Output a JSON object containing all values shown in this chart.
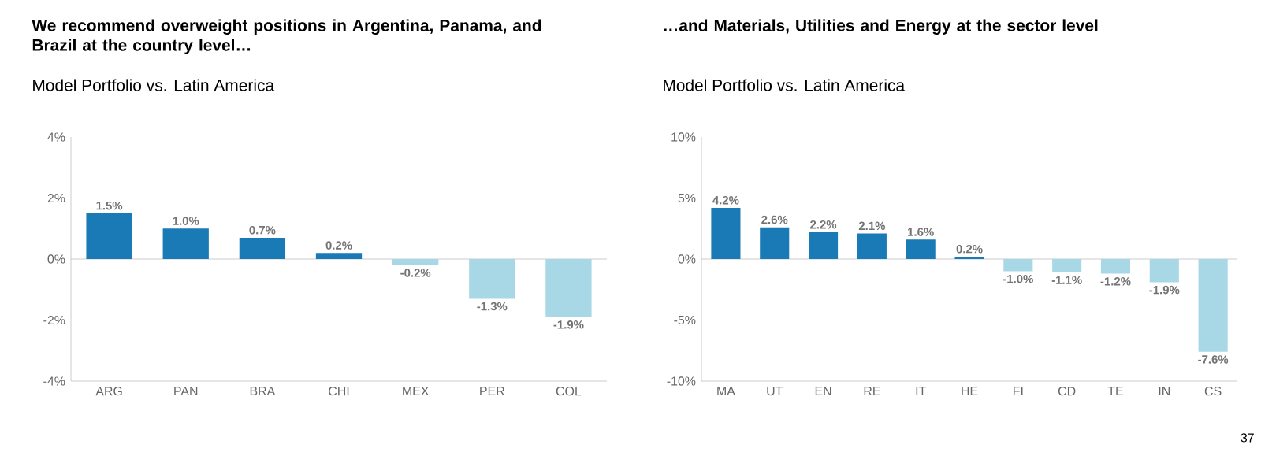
{
  "chart_data": [
    {
      "type": "bar",
      "title": "We recommend overweight positions in Argentina, Panama, and Brazil at the country level…",
      "subtitle": "Model Portfolio vs. Latin America",
      "categories": [
        "ARG",
        "PAN",
        "BRA",
        "CHI",
        "MEX",
        "PER",
        "COL"
      ],
      "values": [
        1.5,
        1.0,
        0.7,
        0.2,
        -0.2,
        -1.3,
        -1.9
      ],
      "colors": [
        "#1a7ab5",
        "#1a7ab5",
        "#1a7ab5",
        "#1a7ab5",
        "#a8d8e6",
        "#a8d8e6",
        "#a8d8e6"
      ],
      "value_labels": [
        "1.5%",
        "1.0%",
        "0.7%",
        "0.2%",
        "-0.2%",
        "-1.3%",
        "-1.9%"
      ],
      "ylim": [
        -4,
        4
      ],
      "yticks": [
        {
          "value": -4,
          "label": "-4%"
        },
        {
          "value": -2,
          "label": "-2%"
        },
        {
          "value": 0,
          "label": "0%"
        },
        {
          "value": 2,
          "label": "2%"
        },
        {
          "value": 4,
          "label": "4%"
        }
      ]
    },
    {
      "type": "bar",
      "title": "…and Materials, Utilities and Energy at the sector level",
      "subtitle": "Model Portfolio vs. Latin America",
      "categories": [
        "MA",
        "UT",
        "EN",
        "RE",
        "IT",
        "HE",
        "FI",
        "CD",
        "TE",
        "IN",
        "CS"
      ],
      "values": [
        4.2,
        2.6,
        2.2,
        2.1,
        1.6,
        0.2,
        -1.0,
        -1.1,
        -1.2,
        -1.9,
        -7.6
      ],
      "colors": [
        "#1a7ab5",
        "#1a7ab5",
        "#1a7ab5",
        "#1a7ab5",
        "#1a7ab5",
        "#1a7ab5",
        "#a8d8e6",
        "#a8d8e6",
        "#a8d8e6",
        "#a8d8e6",
        "#a8d8e6"
      ],
      "value_labels": [
        "4.2%",
        "2.6%",
        "2.2%",
        "2.1%",
        "1.6%",
        "0.2%",
        "-1.0%",
        "-1.1%",
        "-1.2%",
        "-1.9%",
        "-7.6%"
      ],
      "ylim": [
        -10,
        10
      ],
      "yticks": [
        {
          "value": -10,
          "label": "-10%"
        },
        {
          "value": -5,
          "label": "-5%"
        },
        {
          "value": 0,
          "label": "0%"
        },
        {
          "value": 5,
          "label": "5%"
        },
        {
          "value": 10,
          "label": "10%"
        }
      ],
      "annotations": [
        "37"
      ]
    }
  ]
}
